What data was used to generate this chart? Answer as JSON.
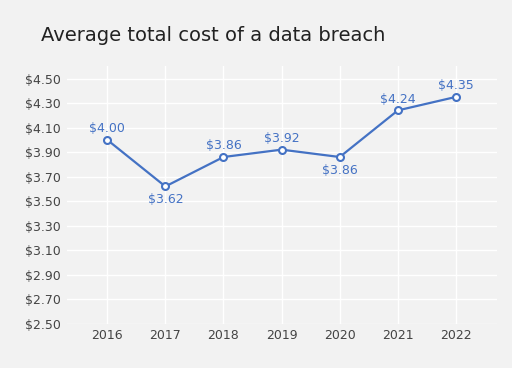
{
  "title": "Average total cost of a data breach",
  "years": [
    2016,
    2017,
    2018,
    2019,
    2020,
    2021,
    2022
  ],
  "values": [
    4.0,
    3.62,
    3.86,
    3.92,
    3.86,
    4.24,
    4.35
  ],
  "labels": [
    "$4.00",
    "$3.62",
    "$3.86",
    "$3.92",
    "$3.86",
    "$4.24",
    "$4.35"
  ],
  "label_offsets_x": [
    0,
    0,
    0,
    0,
    0,
    0,
    0
  ],
  "label_offsets_y": [
    0.09,
    -0.11,
    0.09,
    0.09,
    -0.11,
    0.09,
    0.09
  ],
  "label_ha": [
    "center",
    "center",
    "center",
    "center",
    "center",
    "center",
    "center"
  ],
  "line_color": "#4472C4",
  "marker_facecolor": "#ffffff",
  "marker_edgecolor": "#4472C4",
  "label_color": "#4472C4",
  "background_color": "#f2f2f2",
  "plot_bg_color": "#f2f2f2",
  "grid_color": "#ffffff",
  "ylim_min": 2.5,
  "ylim_max": 4.6,
  "ytick_step": 0.2,
  "title_fontsize": 14,
  "label_fontsize": 9,
  "tick_fontsize": 9,
  "title_color": "#222222",
  "tick_color": "#444444",
  "line_width": 1.6,
  "marker_size": 5,
  "marker_edge_width": 1.5
}
